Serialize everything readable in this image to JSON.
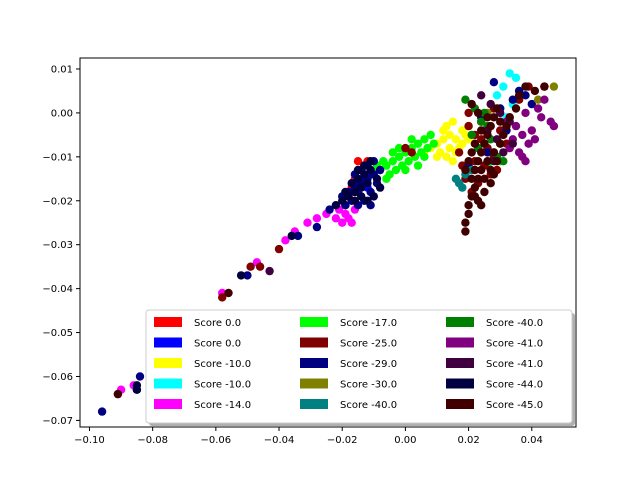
{
  "chart_data": {
    "type": "scatter",
    "title": "",
    "xlabel": "",
    "ylabel": "",
    "xlim": [
      -0.103,
      0.054
    ],
    "ylim": [
      -0.0715,
      0.0125
    ],
    "x_ticks": [
      -0.1,
      -0.08,
      -0.06,
      -0.04,
      -0.02,
      0.0,
      0.02,
      0.04
    ],
    "x_tick_labels": [
      "−0.10",
      "−0.08",
      "−0.06",
      "−0.04",
      "−0.02",
      "0.00",
      "0.02",
      "0.04"
    ],
    "y_ticks": [
      0.01,
      0.0,
      -0.01,
      -0.02,
      -0.03,
      -0.04,
      -0.05,
      -0.06,
      -0.07
    ],
    "y_tick_labels": [
      "0.01",
      "0.00",
      "−0.01",
      "−0.02",
      "−0.03",
      "−0.04",
      "−0.05",
      "−0.06",
      "−0.07"
    ],
    "grid": false,
    "legend_position": "lower-right",
    "legend_columns": 3,
    "series": [
      {
        "name": "Score 0.0",
        "color": "#ff0000",
        "points": [
          [
            -0.015,
            -0.011
          ],
          [
            -0.014,
            -0.013
          ],
          [
            -0.016,
            -0.015
          ],
          [
            -0.017,
            -0.017
          ],
          [
            -0.018,
            -0.019
          ],
          [
            -0.013,
            -0.012
          ],
          [
            -0.014,
            -0.016
          ],
          [
            -0.019,
            -0.021
          ],
          [
            -0.016,
            -0.018
          ],
          [
            -0.012,
            -0.011
          ]
        ]
      },
      {
        "name": "Score 0.0",
        "color": "#0000ff",
        "points": [
          [
            -0.016,
            -0.016
          ],
          [
            -0.013,
            -0.015
          ],
          [
            -0.015,
            -0.018
          ],
          [
            -0.012,
            -0.017
          ],
          [
            -0.014,
            -0.013
          ],
          [
            -0.011,
            -0.014
          ]
        ]
      },
      {
        "name": "Score -10.0",
        "color": "#ffff00",
        "points": [
          [
            0.006,
            -0.009
          ],
          [
            0.008,
            -0.008
          ],
          [
            0.01,
            -0.007
          ],
          [
            0.012,
            -0.006
          ],
          [
            0.014,
            -0.005
          ],
          [
            0.016,
            -0.006
          ],
          [
            0.018,
            -0.004
          ],
          [
            0.02,
            -0.003
          ],
          [
            0.011,
            -0.009
          ],
          [
            0.013,
            -0.01
          ],
          [
            0.015,
            -0.011
          ],
          [
            0.009,
            -0.007
          ],
          [
            0.017,
            -0.008
          ],
          [
            0.019,
            -0.005
          ],
          [
            0.014,
            -0.008
          ],
          [
            0.012,
            -0.004
          ],
          [
            0.016,
            -0.009
          ],
          [
            0.01,
            -0.01
          ],
          [
            0.018,
            -0.007
          ],
          [
            0.02,
            -0.006
          ],
          [
            0.013,
            -0.003
          ],
          [
            0.015,
            -0.002
          ]
        ]
      },
      {
        "name": "Score -10.0",
        "color": "#00ffff",
        "points": [
          [
            0.033,
            0.009
          ],
          [
            0.035,
            0.008
          ],
          [
            0.031,
            0.006
          ],
          [
            0.036,
            0.005
          ],
          [
            0.029,
            0.004
          ],
          [
            0.034,
            0.002
          ],
          [
            0.03,
            0.001
          ],
          [
            0.032,
            -0.001
          ]
        ]
      },
      {
        "name": "Score -14.0",
        "color": "#ff00ff",
        "points": [
          [
            -0.09,
            -0.063
          ],
          [
            -0.086,
            -0.062
          ],
          [
            -0.058,
            -0.041
          ],
          [
            -0.047,
            -0.034
          ],
          [
            -0.038,
            -0.029
          ],
          [
            -0.035,
            -0.027
          ],
          [
            -0.031,
            -0.025
          ],
          [
            -0.028,
            -0.024
          ],
          [
            -0.025,
            -0.023
          ],
          [
            -0.022,
            -0.024
          ],
          [
            -0.02,
            -0.025
          ],
          [
            -0.018,
            -0.024
          ],
          [
            -0.016,
            -0.022
          ],
          [
            -0.019,
            -0.023
          ],
          [
            -0.021,
            -0.022
          ],
          [
            -0.017,
            -0.025
          ]
        ]
      },
      {
        "name": "Score -17.0",
        "color": "#00ff00",
        "points": [
          [
            -0.008,
            -0.013
          ],
          [
            -0.006,
            -0.012
          ],
          [
            -0.004,
            -0.011
          ],
          [
            -0.002,
            -0.01
          ],
          [
            0.0,
            -0.009
          ],
          [
            0.002,
            -0.008
          ],
          [
            0.004,
            -0.007
          ],
          [
            0.006,
            -0.006
          ],
          [
            0.008,
            -0.005
          ],
          [
            -0.005,
            -0.014
          ],
          [
            -0.003,
            -0.013
          ],
          [
            -0.001,
            -0.012
          ],
          [
            0.001,
            -0.011
          ],
          [
            0.003,
            -0.01
          ],
          [
            0.005,
            -0.009
          ],
          [
            0.007,
            -0.008
          ],
          [
            0.009,
            -0.007
          ],
          [
            -0.007,
            -0.011
          ],
          [
            -0.009,
            -0.012
          ],
          [
            -0.004,
            -0.009
          ],
          [
            0.002,
            -0.006
          ],
          [
            0.004,
            -0.012
          ],
          [
            0.0,
            -0.013
          ],
          [
            -0.002,
            -0.008
          ],
          [
            0.006,
            -0.01
          ],
          [
            -0.01,
            -0.013
          ],
          [
            -0.006,
            -0.015
          ],
          [
            0.03,
            -0.011
          ],
          [
            0.028,
            -0.01
          ],
          [
            0.026,
            -0.012
          ]
        ]
      },
      {
        "name": "Score -25.0",
        "color": "#800000",
        "points": [
          [
            -0.091,
            -0.064
          ],
          [
            -0.058,
            -0.042
          ],
          [
            -0.049,
            -0.035
          ],
          [
            -0.046,
            -0.035
          ],
          [
            -0.04,
            -0.031
          ],
          [
            0.0,
            -0.008
          ],
          [
            0.002,
            -0.009
          ],
          [
            0.02,
            -0.003
          ],
          [
            0.022,
            -0.005
          ],
          [
            0.024,
            -0.006
          ],
          [
            0.026,
            -0.008
          ],
          [
            0.028,
            -0.01
          ],
          [
            0.03,
            -0.004
          ],
          [
            0.025,
            -0.012
          ],
          [
            0.027,
            -0.014
          ],
          [
            0.023,
            -0.016
          ],
          [
            0.021,
            -0.018
          ],
          [
            0.019,
            -0.015
          ],
          [
            0.033,
            -0.001
          ],
          [
            0.036,
            0.003
          ],
          [
            0.039,
            0.006
          ],
          [
            0.044,
            0.006
          ],
          [
            0.022,
            -0.011
          ],
          [
            0.024,
            -0.002
          ],
          [
            0.018,
            -0.012
          ],
          [
            0.017,
            -0.009
          ],
          [
            0.028,
            0.001
          ],
          [
            0.02,
            0.0
          ],
          [
            0.032,
            -0.007
          ],
          [
            0.029,
            -0.013
          ]
        ]
      },
      {
        "name": "Score -29.0",
        "color": "#000080",
        "points": [
          [
            -0.096,
            -0.068
          ],
          [
            -0.084,
            -0.06
          ],
          [
            -0.085,
            -0.063
          ],
          [
            -0.05,
            -0.037
          ],
          [
            -0.034,
            -0.028
          ],
          [
            -0.028,
            -0.026
          ],
          [
            -0.024,
            -0.022
          ],
          [
            -0.02,
            -0.019
          ],
          [
            -0.018,
            -0.018
          ],
          [
            -0.016,
            -0.017
          ],
          [
            -0.014,
            -0.016
          ],
          [
            -0.012,
            -0.015
          ],
          [
            -0.01,
            -0.014
          ],
          [
            -0.017,
            -0.02
          ],
          [
            -0.015,
            -0.021
          ],
          [
            -0.013,
            -0.02
          ],
          [
            -0.011,
            -0.018
          ],
          [
            -0.009,
            -0.016
          ],
          [
            -0.012,
            -0.012
          ],
          [
            -0.01,
            -0.011
          ],
          [
            -0.014,
            -0.013
          ],
          [
            -0.008,
            -0.013
          ],
          [
            -0.019,
            -0.021
          ],
          [
            -0.016,
            -0.014
          ],
          [
            -0.011,
            -0.021
          ],
          [
            0.028,
            0.007
          ],
          [
            0.036,
            0.005
          ],
          [
            0.034,
            0.003
          ],
          [
            0.03,
            0.001
          ],
          [
            0.038,
            0.004
          ],
          [
            0.024,
            -0.001
          ],
          [
            0.032,
            -0.004
          ],
          [
            0.026,
            -0.009
          ],
          [
            0.02,
            -0.012
          ],
          [
            0.04,
            0.002
          ]
        ]
      },
      {
        "name": "Score -30.0",
        "color": "#808000",
        "points": [
          [
            0.047,
            0.006
          ],
          [
            0.042,
            0.003
          ],
          [
            0.026,
            0.0
          ],
          [
            0.031,
            -0.005
          ]
        ]
      },
      {
        "name": "Score -40.0",
        "color": "#008080",
        "points": [
          [
            0.016,
            -0.015
          ],
          [
            0.017,
            -0.016
          ],
          [
            0.018,
            -0.017
          ],
          [
            0.019,
            -0.014
          ],
          [
            0.021,
            -0.013
          ],
          [
            0.028,
            -0.009
          ]
        ]
      },
      {
        "name": "Score -40.0",
        "color": "#008000",
        "points": [
          [
            0.019,
            0.003
          ],
          [
            0.022,
            0.001
          ],
          [
            0.024,
            -0.002
          ],
          [
            0.021,
            -0.005
          ],
          [
            0.025,
            0.0
          ],
          [
            0.029,
            -0.01
          ],
          [
            0.027,
            -0.006
          ],
          [
            0.031,
            -0.011
          ],
          [
            0.023,
            -0.008
          ],
          [
            0.026,
            -0.003
          ],
          [
            0.03,
            -0.007
          ]
        ]
      },
      {
        "name": "Score -41.0",
        "color": "#800080",
        "points": [
          [
            0.035,
            -0.003
          ],
          [
            0.037,
            -0.005
          ],
          [
            0.039,
            -0.007
          ],
          [
            0.036,
            -0.009
          ],
          [
            0.038,
            -0.011
          ],
          [
            0.034,
            -0.006
          ],
          [
            0.04,
            -0.004
          ],
          [
            0.042,
            0.001
          ],
          [
            0.044,
            0.003
          ],
          [
            0.046,
            -0.002
          ],
          [
            0.047,
            -0.003
          ],
          [
            0.033,
            -0.008
          ],
          [
            0.037,
            -0.01
          ],
          [
            0.041,
            -0.006
          ],
          [
            0.032,
            -0.002
          ],
          [
            0.038,
            0.0
          ],
          [
            0.043,
            -0.001
          ]
        ]
      },
      {
        "name": "Score -41.0",
        "color": "#400040",
        "points": [
          [
            -0.043,
            -0.036
          ],
          [
            0.024,
            0.004
          ],
          [
            0.027,
            0.002
          ],
          [
            0.03,
            0.0
          ],
          [
            0.033,
            -0.002
          ],
          [
            0.029,
            -0.006
          ],
          [
            0.031,
            -0.009
          ],
          [
            0.026,
            -0.004
          ],
          [
            0.034,
            -0.007
          ],
          [
            0.028,
            -0.011
          ]
        ]
      },
      {
        "name": "Score -44.0",
        "color": "#000040",
        "points": [
          [
            -0.085,
            -0.062
          ],
          [
            -0.085,
            -0.063
          ],
          [
            -0.052,
            -0.037
          ],
          [
            -0.036,
            -0.028
          ],
          [
            -0.022,
            -0.021
          ],
          [
            -0.02,
            -0.02
          ],
          [
            -0.018,
            -0.019
          ],
          [
            -0.016,
            -0.018
          ],
          [
            -0.014,
            -0.017
          ],
          [
            -0.012,
            -0.016
          ],
          [
            -0.013,
            -0.014
          ],
          [
            -0.015,
            -0.015
          ],
          [
            -0.011,
            -0.013
          ],
          [
            -0.009,
            -0.015
          ],
          [
            -0.017,
            -0.016
          ],
          [
            -0.019,
            -0.018
          ],
          [
            -0.01,
            -0.019
          ],
          [
            -0.012,
            -0.02
          ],
          [
            -0.014,
            -0.019
          ],
          [
            -0.016,
            -0.02
          ],
          [
            -0.008,
            -0.017
          ],
          [
            -0.013,
            -0.012
          ],
          [
            -0.011,
            -0.011
          ],
          [
            -0.015,
            -0.013
          ]
        ]
      },
      {
        "name": "Score -45.0",
        "color": "#400000",
        "points": [
          [
            -0.091,
            -0.064
          ],
          [
            -0.056,
            -0.041
          ],
          [
            0.019,
            -0.025
          ],
          [
            0.019,
            -0.027
          ],
          [
            0.02,
            -0.023
          ],
          [
            0.02,
            -0.021
          ],
          [
            0.021,
            -0.019
          ],
          [
            0.022,
            -0.017
          ],
          [
            0.021,
            -0.015
          ],
          [
            0.022,
            -0.013
          ],
          [
            0.023,
            -0.011
          ],
          [
            0.024,
            -0.009
          ],
          [
            0.025,
            -0.007
          ],
          [
            0.026,
            -0.005
          ],
          [
            0.027,
            -0.003
          ],
          [
            0.028,
            -0.001
          ],
          [
            0.029,
            0.001
          ],
          [
            0.024,
            -0.013
          ],
          [
            0.026,
            -0.011
          ],
          [
            0.028,
            -0.009
          ],
          [
            0.03,
            -0.007
          ],
          [
            0.025,
            -0.015
          ],
          [
            0.023,
            -0.015
          ],
          [
            0.027,
            -0.013
          ],
          [
            0.029,
            -0.011
          ],
          [
            0.031,
            -0.005
          ],
          [
            0.032,
            -0.003
          ],
          [
            0.03,
            -0.002
          ],
          [
            0.026,
            -0.001
          ],
          [
            0.024,
            -0.004
          ],
          [
            0.022,
            -0.007
          ],
          [
            0.021,
            -0.009
          ],
          [
            0.02,
            -0.011
          ],
          [
            0.019,
            -0.013
          ],
          [
            0.025,
            -0.018
          ],
          [
            0.033,
            -0.001
          ],
          [
            0.035,
            0.001
          ],
          [
            0.036,
            0.004
          ],
          [
            0.038,
            0.006
          ],
          [
            0.041,
            0.005
          ],
          [
            0.044,
            0.006
          ],
          [
            0.021,
            0.002
          ],
          [
            0.023,
            0.0
          ],
          [
            0.027,
            -0.016
          ],
          [
            0.022,
            -0.019
          ],
          [
            0.024,
            -0.021
          ],
          [
            0.023,
            -0.02
          ],
          [
            0.028,
            -0.014
          ]
        ]
      }
    ]
  }
}
